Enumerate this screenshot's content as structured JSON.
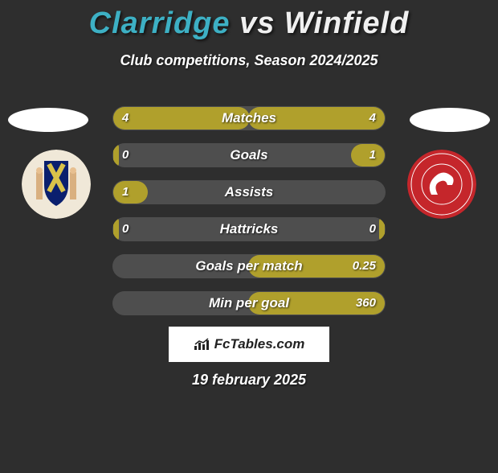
{
  "colors": {
    "background": "#2e2e2e",
    "player_left": "#3db0c4",
    "player_right": "#f0f0f0",
    "bar_fill": "#b0a02c",
    "bar_track": "#4e4e4e",
    "text": "#ffffff",
    "brand_bg": "#ffffff",
    "brand_text": "#222222",
    "left_logo_bg": "#f0e8d8",
    "left_logo_accent1": "#0a1f6e",
    "left_logo_accent2": "#d9c24a",
    "right_logo_bg": "#c5262b",
    "right_logo_inner": "#ffffff"
  },
  "title": {
    "player_left": "Clarridge",
    "vs": "vs",
    "player_right": "Winfield",
    "fontsize": 38
  },
  "subtitle": "Club competitions, Season 2024/2025",
  "bar_scale_max": 4,
  "stats": [
    {
      "label": "Matches",
      "left_val": "4",
      "right_val": "4",
      "left_fill_pct": 100,
      "right_fill_pct": 100
    },
    {
      "label": "Goals",
      "left_val": "0",
      "right_val": "1",
      "left_fill_pct": 4,
      "right_fill_pct": 25
    },
    {
      "label": "Assists",
      "left_val": "1",
      "right_val": "",
      "left_fill_pct": 25,
      "right_fill_pct": 0
    },
    {
      "label": "Hattricks",
      "left_val": "0",
      "right_val": "0",
      "left_fill_pct": 4,
      "right_fill_pct": 4
    },
    {
      "label": "Goals per match",
      "left_val": "",
      "right_val": "0.25",
      "left_fill_pct": 0,
      "right_fill_pct": 100
    },
    {
      "label": "Min per goal",
      "left_val": "",
      "right_val": "360",
      "left_fill_pct": 0,
      "right_fill_pct": 100
    }
  ],
  "brand": "FcTables.com",
  "date": "19 february 2025"
}
